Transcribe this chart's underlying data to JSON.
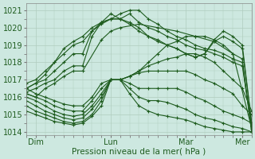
{
  "xlabel": "Pression niveau de la mer( hPa )",
  "ylim": [
    1013.8,
    1021.4
  ],
  "xlim": [
    0,
    72
  ],
  "yticks": [
    1014,
    1015,
    1016,
    1017,
    1018,
    1019,
    1020,
    1021
  ],
  "xtick_positions": [
    3,
    27,
    51,
    69
  ],
  "xtick_labels": [
    "Dim",
    "Lun",
    "Mar",
    "Mer"
  ],
  "background_color": "#cde8e0",
  "grid_color": "#b0ccbe",
  "line_color": "#1e5c1e",
  "lines": [
    {
      "x": [
        0,
        3,
        6,
        9,
        12,
        15,
        18,
        21,
        24,
        27,
        30,
        33,
        36,
        39,
        42,
        45,
        48,
        51,
        54,
        57,
        60,
        63,
        66,
        69,
        72
      ],
      "y": [
        1016.5,
        1016.2,
        1016.0,
        1015.8,
        1015.6,
        1015.5,
        1015.5,
        1016.0,
        1016.8,
        1017.0,
        1017.0,
        1017.2,
        1017.5,
        1018.0,
        1018.5,
        1019.0,
        1019.2,
        1019.5,
        1019.5,
        1019.5,
        1019.3,
        1019.0,
        1018.5,
        1018.2,
        1014.0
      ]
    },
    {
      "x": [
        0,
        3,
        6,
        9,
        12,
        15,
        18,
        21,
        24,
        27,
        30,
        33,
        36,
        39,
        42,
        45,
        48,
        51,
        54,
        57,
        60,
        63,
        66,
        69,
        72
      ],
      "y": [
        1016.2,
        1016.0,
        1015.8,
        1015.5,
        1015.3,
        1015.2,
        1015.2,
        1015.8,
        1016.5,
        1017.0,
        1017.0,
        1017.2,
        1017.5,
        1017.8,
        1018.0,
        1018.2,
        1018.3,
        1018.5,
        1018.5,
        1018.3,
        1018.0,
        1017.5,
        1017.0,
        1016.5,
        1015.2
      ]
    },
    {
      "x": [
        0,
        3,
        6,
        9,
        12,
        15,
        18,
        21,
        24,
        27,
        30,
        33,
        36,
        39,
        42,
        45,
        48,
        51,
        54,
        57,
        60,
        63,
        66,
        69,
        72
      ],
      "y": [
        1016.0,
        1015.8,
        1015.5,
        1015.2,
        1015.0,
        1014.9,
        1015.0,
        1015.5,
        1016.2,
        1017.0,
        1017.0,
        1017.2,
        1017.4,
        1017.5,
        1017.5,
        1017.5,
        1017.5,
        1017.5,
        1017.3,
        1017.0,
        1016.8,
        1016.5,
        1016.2,
        1015.5,
        1015.0
      ]
    },
    {
      "x": [
        0,
        3,
        6,
        9,
        12,
        15,
        18,
        21,
        24,
        27,
        30,
        33,
        36,
        39,
        42,
        45,
        48,
        51,
        54,
        57,
        60,
        63,
        66,
        69,
        72
      ],
      "y": [
        1015.8,
        1015.5,
        1015.2,
        1015.0,
        1014.8,
        1014.7,
        1014.8,
        1015.3,
        1016.0,
        1017.0,
        1017.0,
        1016.8,
        1016.5,
        1016.5,
        1016.5,
        1016.5,
        1016.5,
        1016.3,
        1016.0,
        1015.8,
        1015.5,
        1015.2,
        1015.0,
        1014.8,
        1014.5
      ]
    },
    {
      "x": [
        0,
        3,
        6,
        9,
        12,
        15,
        18,
        21,
        24,
        27,
        30,
        33,
        36,
        39,
        42,
        45,
        48,
        51,
        54,
        57,
        60,
        63,
        66,
        69,
        72
      ],
      "y": [
        1015.5,
        1015.2,
        1015.0,
        1014.8,
        1014.6,
        1014.5,
        1014.6,
        1015.0,
        1015.8,
        1017.0,
        1017.0,
        1016.5,
        1016.0,
        1015.8,
        1015.8,
        1015.7,
        1015.5,
        1015.3,
        1015.0,
        1014.8,
        1014.7,
        1014.5,
        1014.3,
        1014.2,
        1014.0
      ]
    },
    {
      "x": [
        0,
        3,
        6,
        9,
        12,
        15,
        18,
        21,
        24,
        27,
        30,
        33,
        36,
        39,
        42,
        45,
        48,
        51,
        54,
        57,
        60,
        63,
        66,
        69,
        72
      ],
      "y": [
        1015.2,
        1015.0,
        1014.8,
        1014.6,
        1014.5,
        1014.4,
        1014.5,
        1014.9,
        1015.5,
        1017.0,
        1017.0,
        1016.2,
        1015.5,
        1015.2,
        1015.0,
        1014.9,
        1014.8,
        1014.7,
        1014.5,
        1014.3,
        1014.2,
        1014.1,
        1014.0,
        1014.0,
        1014.0
      ]
    },
    {
      "x": [
        0,
        3,
        6,
        9,
        12,
        15,
        18,
        24,
        27,
        30,
        36,
        42,
        48,
        54,
        60,
        66,
        72
      ],
      "y": [
        1016.2,
        1016.0,
        1016.5,
        1016.8,
        1017.2,
        1017.5,
        1017.5,
        1019.3,
        1019.8,
        1020.0,
        1020.2,
        1020.0,
        1019.8,
        1019.5,
        1019.2,
        1018.5,
        1014.2
      ]
    },
    {
      "x": [
        0,
        3,
        6,
        9,
        12,
        15,
        18,
        21,
        24,
        27,
        30,
        33,
        36,
        39,
        42,
        45,
        48,
        51,
        54,
        57,
        60,
        63,
        66,
        69,
        72
      ],
      "y": [
        1016.3,
        1016.5,
        1016.8,
        1017.0,
        1017.5,
        1017.8,
        1017.8,
        1019.5,
        1020.3,
        1020.5,
        1020.8,
        1021.0,
        1021.0,
        1020.5,
        1020.2,
        1019.8,
        1019.5,
        1019.3,
        1019.0,
        1018.8,
        1018.7,
        1018.5,
        1018.2,
        1018.0,
        1014.0
      ]
    },
    {
      "x": [
        0,
        3,
        6,
        9,
        12,
        15,
        18,
        21,
        24,
        27,
        30,
        33,
        36,
        39,
        42,
        45,
        48,
        51,
        54,
        57,
        60,
        63,
        66,
        69,
        72
      ],
      "y": [
        1016.5,
        1016.8,
        1017.0,
        1017.5,
        1018.0,
        1018.5,
        1018.5,
        1019.8,
        1020.2,
        1020.5,
        1020.5,
        1020.8,
        1020.3,
        1020.0,
        1019.8,
        1019.5,
        1019.3,
        1019.0,
        1018.8,
        1018.7,
        1018.5,
        1018.3,
        1018.0,
        1017.8,
        1014.3
      ]
    },
    {
      "x": [
        0,
        3,
        6,
        9,
        12,
        15,
        18,
        21,
        24,
        27,
        30,
        33,
        36,
        39,
        42,
        45,
        48,
        51,
        54,
        57,
        60,
        63,
        66,
        69,
        72
      ],
      "y": [
        1016.8,
        1017.0,
        1017.5,
        1018.0,
        1018.5,
        1019.0,
        1019.2,
        1019.8,
        1020.3,
        1020.5,
        1020.5,
        1020.2,
        1019.8,
        1019.5,
        1019.3,
        1019.0,
        1018.8,
        1018.5,
        1018.3,
        1018.5,
        1019.2,
        1019.5,
        1019.2,
        1018.8,
        1014.5
      ]
    },
    {
      "x": [
        0,
        3,
        6,
        9,
        12,
        15,
        18,
        21,
        24,
        27,
        30,
        33,
        36,
        39,
        42,
        45,
        48,
        51,
        54,
        57,
        60,
        63,
        66,
        69,
        72
      ],
      "y": [
        1016.5,
        1016.8,
        1017.3,
        1018.0,
        1018.8,
        1019.2,
        1019.5,
        1020.0,
        1020.3,
        1020.8,
        1020.5,
        1020.3,
        1020.0,
        1019.5,
        1019.2,
        1019.0,
        1018.8,
        1018.5,
        1018.3,
        1018.5,
        1019.3,
        1019.8,
        1019.5,
        1019.0,
        1014.5
      ]
    }
  ]
}
